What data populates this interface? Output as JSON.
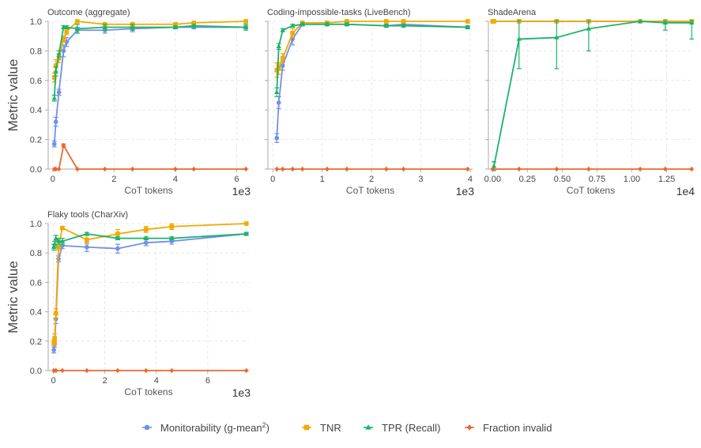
{
  "chart_data": [
    {
      "type": "line",
      "title": "Outcome (aggregate)",
      "xlabel": "CoT tokens",
      "x_exponent": "1e3",
      "ylabel": "Metric value",
      "xlim": [
        -0.15,
        6.4
      ],
      "ylim": [
        0,
        1
      ],
      "xticks": [
        0,
        2,
        4,
        6
      ],
      "yticks": [
        0.0,
        0.2,
        0.4,
        0.6,
        0.8,
        1.0
      ],
      "grid": true,
      "series": [
        {
          "name": "Monitorability (g-mean²)",
          "x": [
            0.05,
            0.1,
            0.2,
            0.35,
            0.45,
            0.8,
            1.7,
            2.6,
            4.0,
            4.6,
            6.3
          ],
          "y": [
            0.17,
            0.32,
            0.52,
            0.8,
            0.86,
            0.94,
            0.94,
            0.95,
            0.96,
            0.96,
            0.96
          ],
          "err": [
            0.02,
            0.03,
            0.02,
            0.04,
            0.03,
            0.02,
            0.02,
            0.02,
            0.01,
            0.01,
            0.01
          ]
        },
        {
          "name": "TNR",
          "x": [
            0.05,
            0.1,
            0.2,
            0.35,
            0.45,
            0.8,
            1.7,
            2.6,
            4.0,
            4.6,
            6.3
          ],
          "y": [
            0.62,
            0.7,
            0.75,
            0.88,
            0.93,
            1.0,
            0.98,
            0.98,
            0.98,
            0.99,
            1.0
          ],
          "err": [
            0.03,
            0.04,
            0.03,
            0.02,
            0.02,
            0.0,
            0.01,
            0.01,
            0.01,
            0.0,
            0.0
          ]
        },
        {
          "name": "TPR (Recall)",
          "x": [
            0.05,
            0.1,
            0.2,
            0.35,
            0.45,
            0.8,
            1.7,
            2.6,
            4.0,
            4.6,
            6.3
          ],
          "y": [
            0.48,
            0.66,
            0.78,
            0.96,
            0.96,
            0.95,
            0.96,
            0.96,
            0.96,
            0.97,
            0.96
          ],
          "err": [
            0.02,
            0.03,
            0.02,
            0.01,
            0.01,
            0.03,
            0.02,
            0.02,
            0.01,
            0.01,
            0.02
          ]
        },
        {
          "name": "Fraction invalid",
          "x": [
            0.05,
            0.1,
            0.2,
            0.35,
            0.8,
            1.7,
            2.6,
            4.0,
            4.6,
            6.3
          ],
          "y": [
            0.0,
            0.0,
            0.0,
            0.16,
            0.0,
            0.0,
            0.0,
            0.0,
            0.0,
            0.0
          ],
          "err": [
            0,
            0,
            0,
            0.01,
            0,
            0,
            0,
            0,
            0,
            0
          ]
        }
      ]
    },
    {
      "type": "line",
      "title": "Coding-impossible-tasks (LiveBench)",
      "xlabel": "CoT tokens",
      "x_exponent": "1e3",
      "ylabel": "",
      "xlim": [
        -0.1,
        4.05
      ],
      "ylim": [
        0,
        1
      ],
      "xticks": [
        0,
        1,
        2,
        3,
        4
      ],
      "yticks": [
        0.0,
        0.2,
        0.4,
        0.6,
        0.8,
        1.0
      ],
      "grid": true,
      "series": [
        {
          "name": "Monitorability (g-mean²)",
          "x": [
            0.08,
            0.12,
            0.2,
            0.4,
            0.6,
            1.1,
            1.5,
            2.3,
            2.65,
            3.95
          ],
          "y": [
            0.21,
            0.45,
            0.7,
            0.88,
            0.98,
            0.98,
            0.98,
            0.97,
            0.98,
            0.96
          ],
          "err": [
            0.03,
            0.04,
            0.03,
            0.04,
            0.01,
            0.01,
            0.01,
            0.01,
            0.01,
            0.01
          ]
        },
        {
          "name": "TNR",
          "x": [
            0.08,
            0.12,
            0.2,
            0.4,
            0.6,
            1.1,
            1.5,
            2.3,
            2.65,
            3.95
          ],
          "y": [
            0.67,
            0.68,
            0.75,
            0.92,
            0.99,
            0.99,
            1.0,
            1.0,
            1.0,
            1.0
          ],
          "err": [
            0.05,
            0.04,
            0.03,
            0.03,
            0.0,
            0.0,
            0.0,
            0.0,
            0.0,
            0.0
          ]
        },
        {
          "name": "TPR (Recall)",
          "x": [
            0.08,
            0.12,
            0.2,
            0.4,
            0.6,
            1.1,
            1.5,
            2.3,
            2.65,
            3.95
          ],
          "y": [
            0.52,
            0.83,
            0.94,
            0.97,
            0.98,
            0.98,
            0.98,
            0.97,
            0.97,
            0.96
          ],
          "err": [
            0.03,
            0.02,
            0.01,
            0.01,
            0.01,
            0.01,
            0.01,
            0.01,
            0.01,
            0.01
          ]
        },
        {
          "name": "Fraction invalid",
          "x": [
            0.08,
            0.2,
            0.4,
            0.6,
            1.1,
            1.5,
            2.3,
            2.65,
            3.95
          ],
          "y": [
            0,
            0,
            0,
            0,
            0,
            0,
            0,
            0,
            0
          ],
          "err": [
            0,
            0,
            0,
            0,
            0,
            0,
            0,
            0,
            0
          ]
        }
      ]
    },
    {
      "type": "line",
      "title": "ShadeArena",
      "xlabel": "CoT tokens",
      "x_exponent": "1e4",
      "ylabel": "",
      "xlim": [
        -0.03,
        1.44
      ],
      "ylim": [
        0,
        1
      ],
      "xticks": [
        0.0,
        0.25,
        0.5,
        0.75,
        1.0,
        1.25
      ],
      "xtick_labels": [
        "0.00",
        "0.25",
        "0.50",
        "0.75",
        "1.00",
        "1.25"
      ],
      "yticks": [
        0.0,
        0.2,
        0.4,
        0.6,
        0.8,
        1.0
      ],
      "grid": true,
      "series": [
        {
          "name": "Monitorability (g-mean²)",
          "x": [
            0.0,
            0.01,
            0.19,
            0.46,
            0.69,
            1.06,
            1.24,
            1.43
          ],
          "y": [
            1.0,
            1.0,
            1.0,
            1.0,
            1.0,
            1.0,
            1.0,
            1.0
          ],
          "err": [
            0,
            0,
            0,
            0,
            0,
            0,
            0,
            0
          ]
        },
        {
          "name": "TNR",
          "x": [
            0.0,
            0.01,
            0.19,
            0.46,
            0.69,
            1.06,
            1.24,
            1.43
          ],
          "y": [
            1.0,
            1.0,
            1.0,
            1.0,
            1.0,
            1.0,
            1.0,
            1.0
          ],
          "err": [
            0,
            0,
            0,
            0,
            0,
            0,
            0,
            0
          ]
        },
        {
          "name": "TPR (Recall)",
          "x": [
            0.01,
            0.19,
            0.46,
            0.69,
            1.06,
            1.24,
            1.43
          ],
          "y": [
            0.02,
            0.88,
            0.89,
            0.95,
            1.0,
            0.99,
            0.99
          ],
          "err": [
            0.03,
            0.2,
            0.21,
            0.15,
            0.0,
            0.05,
            0.11
          ]
        },
        {
          "name": "Fraction invalid",
          "x": [
            0.0,
            0.19,
            0.46,
            0.69,
            1.06,
            1.24,
            1.43
          ],
          "y": [
            0,
            0,
            0,
            0,
            0,
            0,
            0
          ],
          "err": [
            0,
            0,
            0,
            0,
            0,
            0,
            0
          ]
        }
      ]
    },
    {
      "type": "line",
      "title": "Flaky tools (CharXiv)",
      "xlabel": "CoT tokens",
      "x_exponent": "1e3",
      "ylabel": "Metric value",
      "xlim": [
        -0.2,
        7.6
      ],
      "ylim": [
        0,
        1
      ],
      "xticks": [
        0,
        2,
        4,
        6
      ],
      "yticks": [
        0.0,
        0.2,
        0.4,
        0.6,
        0.8,
        1.0
      ],
      "grid": true,
      "series": [
        {
          "name": "Monitorability (g-mean²)",
          "x": [
            0.02,
            0.05,
            0.1,
            0.2,
            0.35,
            1.3,
            2.5,
            3.6,
            4.6,
            7.5
          ],
          "y": [
            0.14,
            0.18,
            0.35,
            0.76,
            0.85,
            0.84,
            0.83,
            0.87,
            0.88,
            0.93
          ],
          "err": [
            0.02,
            0.02,
            0.03,
            0.02,
            0.02,
            0.03,
            0.03,
            0.02,
            0.02,
            0.01
          ]
        },
        {
          "name": "TNR",
          "x": [
            0.02,
            0.05,
            0.1,
            0.2,
            0.35,
            1.3,
            2.5,
            3.6,
            4.6,
            7.5
          ],
          "y": [
            0.19,
            0.22,
            0.39,
            0.84,
            0.97,
            0.89,
            0.93,
            0.96,
            0.98,
            1.0
          ],
          "err": [
            0.02,
            0.03,
            0.03,
            0.02,
            0.01,
            0.03,
            0.03,
            0.02,
            0.02,
            0.0
          ]
        },
        {
          "name": "TPR (Recall)",
          "x": [
            0.02,
            0.05,
            0.1,
            0.2,
            0.35,
            1.3,
            2.5,
            3.6,
            4.6,
            7.5
          ],
          "y": [
            0.84,
            0.86,
            0.9,
            0.88,
            0.88,
            0.93,
            0.9,
            0.9,
            0.9,
            0.93
          ],
          "err": [
            0.02,
            0.02,
            0.02,
            0.02,
            0.02,
            0.01,
            0.01,
            0.01,
            0.01,
            0.01
          ]
        },
        {
          "name": "Fraction invalid",
          "x": [
            0.02,
            0.1,
            0.35,
            1.3,
            2.5,
            3.6,
            4.6,
            7.5
          ],
          "y": [
            0,
            0,
            0,
            0,
            0,
            0,
            0,
            0
          ],
          "err": [
            0,
            0,
            0,
            0,
            0,
            0,
            0,
            0
          ]
        }
      ]
    }
  ],
  "legend": {
    "placement": "bottom-center",
    "entries": [
      {
        "label_main": "Monitorability (g-mean",
        "label_sup": "2",
        "label_end": ")",
        "color": "#7090e8",
        "marker": "circle"
      },
      {
        "label_main": "TNR",
        "label_sup": "",
        "label_end": "",
        "color": "#f2a900",
        "marker": "square"
      },
      {
        "label_main": "TPR (Recall)",
        "label_sup": "",
        "label_end": "",
        "color": "#1bb36a",
        "marker": "triangle"
      },
      {
        "label_main": "Fraction invalid",
        "label_sup": "",
        "label_end": "",
        "color": "#e8692c",
        "marker": "diamond"
      }
    ]
  },
  "series_colors": [
    "#7090e8",
    "#f2a900",
    "#1bb36a",
    "#e8692c"
  ],
  "series_markers": [
    "circle",
    "square",
    "triangle",
    "diamond"
  ]
}
